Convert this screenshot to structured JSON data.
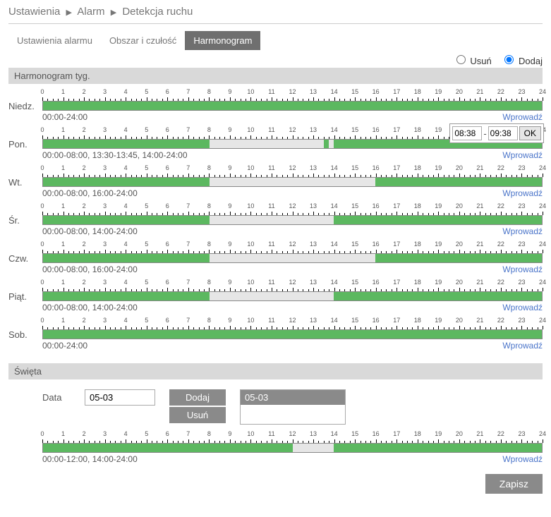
{
  "breadcrumb": [
    "Ustawienia",
    "Alarm",
    "Detekcja ruchu"
  ],
  "tabs": [
    {
      "label": "Ustawienia alarmu",
      "active": false
    },
    {
      "label": "Obszar i czułość",
      "active": false
    },
    {
      "label": "Harmonogram",
      "active": true
    }
  ],
  "radio": {
    "remove": "Usuń",
    "add": "Dodaj",
    "selected": "add"
  },
  "weekly": {
    "header": "Harmonogram tyg.",
    "enter_label": "Wprowadź",
    "hours": 24,
    "days": [
      {
        "label": "Niedz.",
        "ranges_text": "00:00-24:00",
        "segments": [
          [
            0,
            24
          ]
        ],
        "has_popup": false
      },
      {
        "label": "Pon.",
        "ranges_text": "00:00-08:00,  13:30-13:45,  14:00-24:00",
        "segments": [
          [
            0,
            8
          ],
          [
            13.5,
            13.75
          ],
          [
            14,
            24
          ]
        ],
        "has_popup": true,
        "popup": {
          "from": "08:38",
          "to": "09:38",
          "ok": "OK"
        }
      },
      {
        "label": "Wt.",
        "ranges_text": "00:00-08:00,  16:00-24:00",
        "segments": [
          [
            0,
            8
          ],
          [
            16,
            24
          ]
        ],
        "has_popup": false
      },
      {
        "label": "Śr.",
        "ranges_text": "00:00-08:00,  14:00-24:00",
        "segments": [
          [
            0,
            8
          ],
          [
            14,
            24
          ]
        ],
        "has_popup": false
      },
      {
        "label": "Czw.",
        "ranges_text": "00:00-08:00,  16:00-24:00",
        "segments": [
          [
            0,
            8
          ],
          [
            16,
            24
          ]
        ],
        "has_popup": false
      },
      {
        "label": "Piąt.",
        "ranges_text": "00:00-08:00,  14:00-24:00",
        "segments": [
          [
            0,
            8
          ],
          [
            14,
            24
          ]
        ],
        "has_popup": false
      },
      {
        "label": "Sob.",
        "ranges_text": "00:00-24:00",
        "segments": [
          [
            0,
            24
          ]
        ],
        "has_popup": false
      }
    ]
  },
  "holidays": {
    "header": "Święta",
    "date_label": "Data",
    "date_input": "05-03",
    "add_btn": "Dodaj",
    "remove_btn": "Usuń",
    "list": [
      "05-03"
    ],
    "schedule": {
      "ranges_text": "00:00-12:00,  14:00-24:00",
      "segments": [
        [
          0,
          12
        ],
        [
          14,
          24
        ]
      ]
    },
    "enter_label": "Wprowadź"
  },
  "save_label": "Zapisz",
  "colors": {
    "segment": "#5cb860",
    "bar_bg": "#e6e6e6",
    "header_bg": "#d9d9d9",
    "link": "#4a74c9",
    "btn_bg": "#8a8a8a"
  }
}
